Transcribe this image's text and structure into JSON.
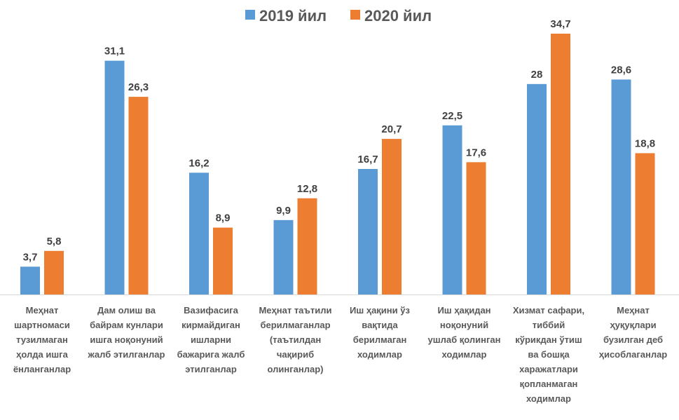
{
  "chart_data": {
    "type": "bar",
    "title": "",
    "xlabel": "",
    "ylabel": "",
    "ylim": [
      0,
      35
    ],
    "grid": false,
    "legend_position": "top",
    "categories": [
      "Меҳнат\nшартномаси\nтузилмаган\nҳолда ишга\nёнланганлар",
      "Дам олиш ва\nбайрам кунлари\nишга ноқонуний\nжалб этилганлар",
      "Вазифасига\nкирмайдиган\nишларни\nбажарига жалб\nэтилганлар",
      "Меҳнат таътили\nберилмаганлар\n(таътилдан\nчақириб\nолинганлар)",
      "Иш ҳақини ўз\nвақтида\nберилмаган\nходимлар",
      "Иш ҳақидан\nноқонуний\nушлаб қолинган\nходимлар",
      "Хизмат сафари,\nтиббий\nкўрикдан ўтиш\nва бошқа\nхаражатлари\nқопланмаган\nходимлар",
      "Меҳнат\nҳуқуқлари\nбузилган деб\nҳисоблаганлар"
    ],
    "series": [
      {
        "name": "2019 йил",
        "color": "#5B9BD5",
        "values": [
          3.7,
          31.1,
          16.2,
          9.9,
          16.7,
          22.5,
          28,
          28.6
        ],
        "labels": [
          "3,7",
          "31,1",
          "16,2",
          "9,9",
          "16,7",
          "22,5",
          "28",
          "28,6"
        ]
      },
      {
        "name": "2020 йил",
        "color": "#ED7D31",
        "values": [
          5.8,
          26.3,
          8.9,
          12.8,
          20.7,
          17.6,
          34.7,
          18.8
        ],
        "labels": [
          "5,8",
          "26,3",
          "8,9",
          "12,8",
          "20,7",
          "17,6",
          "34,7",
          "18,8"
        ]
      }
    ]
  }
}
